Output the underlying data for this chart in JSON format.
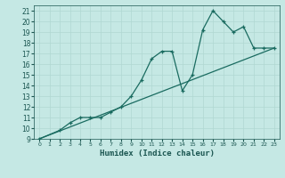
{
  "xlabel": "Humidex (Indice chaleur)",
  "bg_color": "#c5e8e4",
  "line_color": "#1a6b60",
  "grid_color": "#b0d8d2",
  "xlim": [
    -0.5,
    23.5
  ],
  "ylim": [
    9,
    21.5
  ],
  "x_ticks": [
    0,
    1,
    2,
    3,
    4,
    5,
    6,
    7,
    8,
    9,
    10,
    11,
    12,
    13,
    14,
    15,
    16,
    17,
    18,
    19,
    20,
    21,
    22,
    23
  ],
  "y_ticks": [
    9,
    10,
    11,
    12,
    13,
    14,
    15,
    16,
    17,
    18,
    19,
    20,
    21
  ],
  "line1_x": [
    0,
    2,
    3,
    4,
    5,
    6,
    7,
    8,
    9,
    10,
    11,
    12,
    13,
    14,
    15,
    16,
    17,
    18,
    19,
    20,
    21,
    22,
    23
  ],
  "line1_y": [
    9,
    9.8,
    10.5,
    11,
    11,
    11,
    11.5,
    12,
    13,
    14.5,
    16.5,
    17.2,
    17.2,
    13.5,
    15.0,
    19.2,
    21,
    20,
    19,
    19.5,
    17.5,
    17.5,
    17.5
  ],
  "line2_x": [
    0,
    23
  ],
  "line2_y": [
    9,
    17.5
  ]
}
